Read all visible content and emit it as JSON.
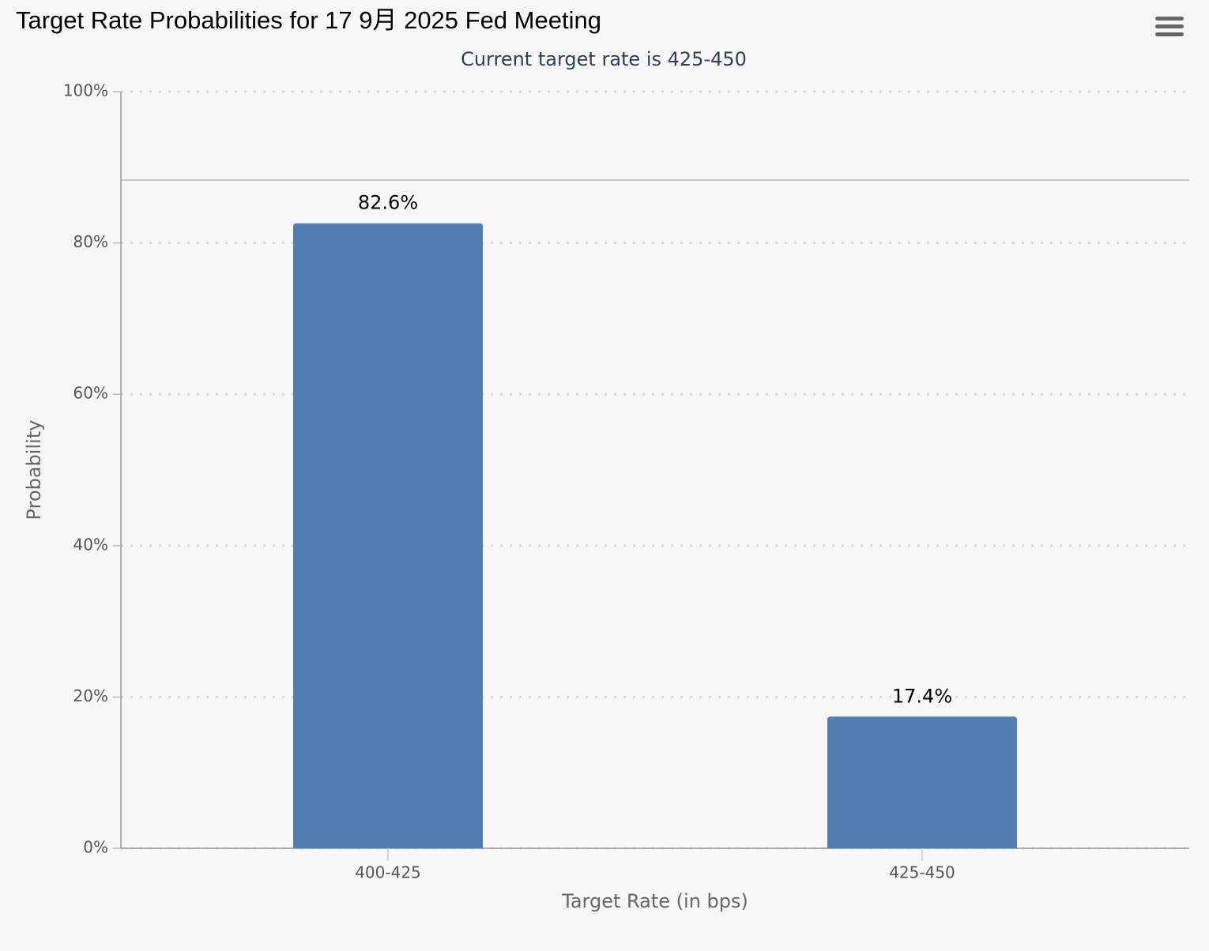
{
  "chart_data": {
    "type": "bar",
    "title": "Target Rate Probabilities for 17 9月 2025 Fed Meeting",
    "subtitle": "Current target rate is 425-450",
    "x_label": "Target Rate (in bps)",
    "y_label": "Probability",
    "categories": [
      "400-425",
      "425-450"
    ],
    "values": [
      82.6,
      17.4
    ],
    "value_labels": [
      "82.6%",
      "17.4%"
    ],
    "color": "#537eb2",
    "ylim": [
      0,
      100
    ],
    "yticks": [
      {
        "value": 0,
        "label": "0%"
      },
      {
        "value": 20,
        "label": "20%"
      },
      {
        "value": 40,
        "label": "40%"
      },
      {
        "value": 60,
        "label": "60%"
      },
      {
        "value": 80,
        "label": "80%"
      },
      {
        "value": 100,
        "label": "100%"
      }
    ],
    "grid": true
  }
}
